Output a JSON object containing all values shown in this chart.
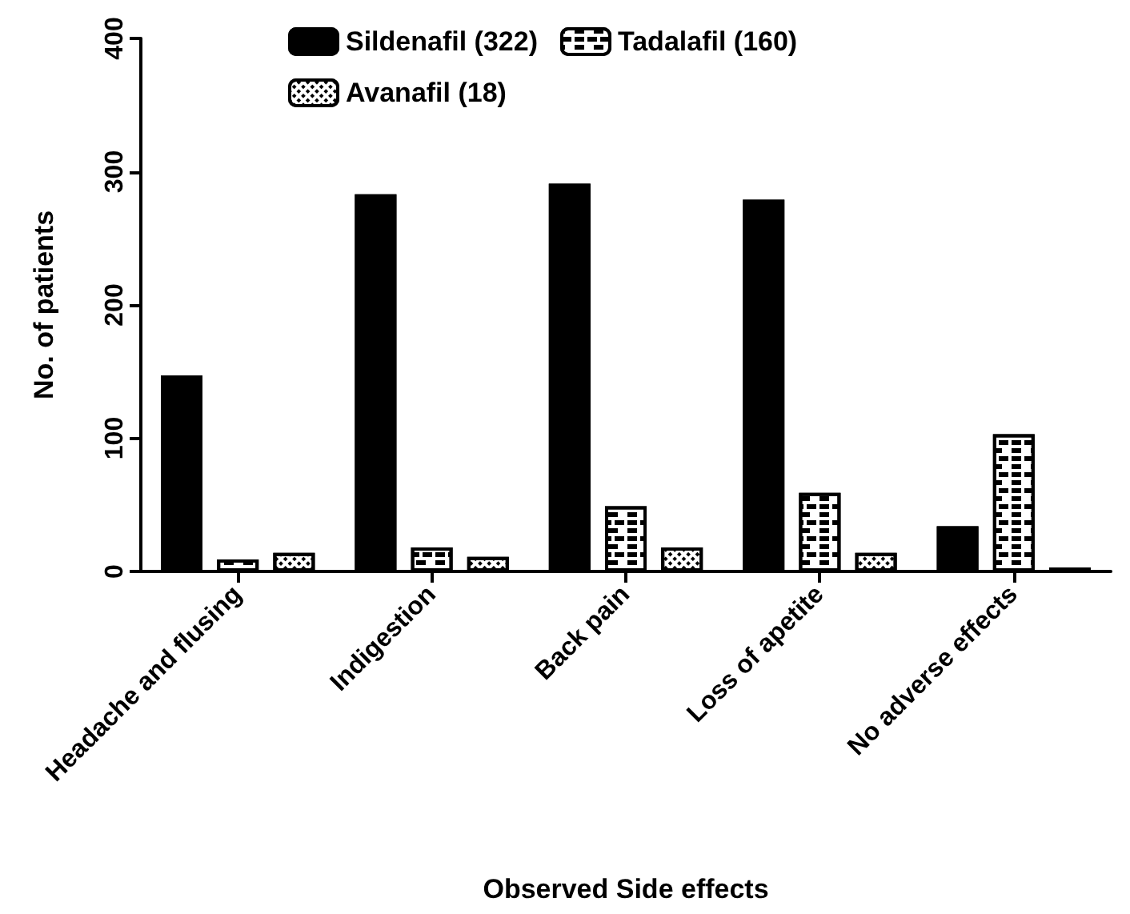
{
  "chart_data": {
    "type": "bar",
    "xlabel": "Observed Side effects",
    "ylabel": "No. of patients",
    "categories": [
      "Headache and flusing",
      "Indigestion",
      "Back pain",
      "Loss of apetite",
      "No adverse effects"
    ],
    "series": [
      {
        "name": "Sildenafil (322)",
        "color": "#000000",
        "values": [
          147,
          283,
          291,
          279,
          34
        ]
      },
      {
        "name": "Tadalafil (160)",
        "color": "#ffffff",
        "values": [
          9,
          18,
          49,
          59,
          103
        ]
      },
      {
        "name": "Avanafil (18)",
        "color": "#ffffff",
        "values": [
          14,
          11,
          18,
          14,
          3
        ]
      }
    ],
    "ylim": [
      0,
      400
    ],
    "yticks": [
      0,
      100,
      200,
      300,
      400
    ],
    "grid": false,
    "legend": "top"
  }
}
